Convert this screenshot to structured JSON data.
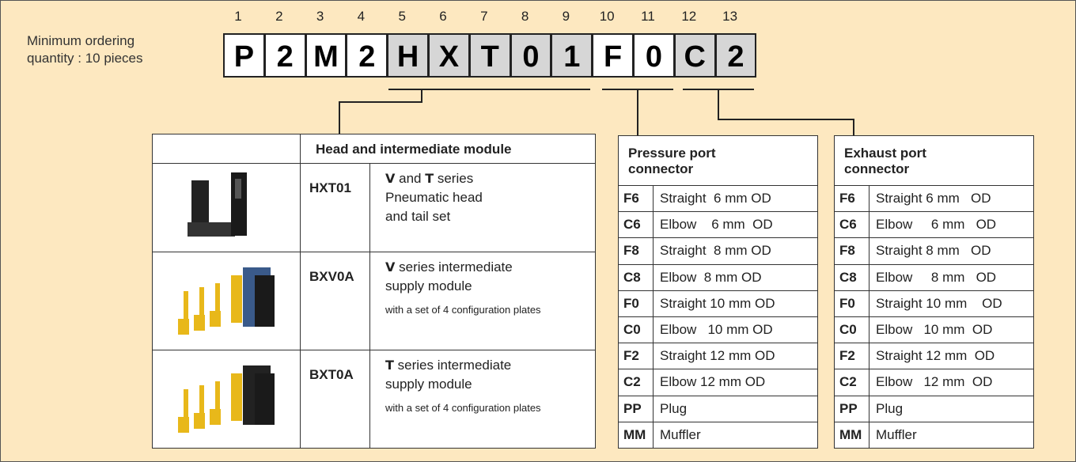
{
  "note": {
    "lines": [
      "Minimum ordering",
      "quantity : 10 pieces"
    ]
  },
  "code": {
    "positions": [
      "1",
      "2",
      "3",
      "4",
      "5",
      "6",
      "7",
      "8",
      "9",
      "10",
      "11",
      "12",
      "13"
    ],
    "chars": [
      "P",
      "2",
      "M",
      "2",
      "H",
      "X",
      "T",
      "0",
      "1",
      "F",
      "0",
      "C",
      "2"
    ]
  },
  "head_table": {
    "title": "Head and intermediate module",
    "rows": [
      {
        "code": "HXT01",
        "lines": [
          [
            {
              "text": "V",
              "bold": true
            },
            {
              "text": " and "
            },
            {
              "text": "T",
              "bold": true
            },
            {
              "text": " series"
            }
          ],
          [
            {
              "text": "Pneumatic head"
            }
          ],
          [
            {
              "text": "and tail set"
            }
          ]
        ]
      },
      {
        "code": "BXV0A",
        "lines": [
          [
            {
              "text": "V",
              "bold": true
            },
            {
              "text": " series intermediate"
            }
          ],
          [
            {
              "text": "supply module"
            }
          ]
        ],
        "note": "with a set of 4 configuration plates"
      },
      {
        "code": "BXT0A",
        "lines": [
          [
            {
              "text": "T",
              "bold": true
            },
            {
              "text": " series intermediate"
            }
          ],
          [
            {
              "text": "supply module"
            }
          ]
        ],
        "note": "with a set of 4 configuration plates"
      }
    ]
  },
  "pressure_table": {
    "title": [
      "Pressure port",
      "connector"
    ],
    "rows": [
      [
        "F6",
        "Straight  6 mm OD"
      ],
      [
        "C6",
        "Elbow    6 mm  OD"
      ],
      [
        "F8",
        "Straight  8 mm OD"
      ],
      [
        "C8",
        "Elbow  8 mm OD"
      ],
      [
        "F0",
        "Straight 10 mm OD"
      ],
      [
        "C0",
        "Elbow   10 mm OD"
      ],
      [
        "F2",
        "Straight 12 mm OD"
      ],
      [
        "C2",
        "Elbow 12 mm OD"
      ],
      [
        "PP",
        "Plug"
      ],
      [
        "MM",
        "Muffler"
      ]
    ]
  },
  "exhaust_table": {
    "title": [
      "Exhaust port",
      "connector"
    ],
    "rows": [
      [
        "F6",
        "Straight 6 mm   OD"
      ],
      [
        "C6",
        "Elbow     6 mm   OD"
      ],
      [
        "F8",
        "Straight 8 mm   OD"
      ],
      [
        "C8",
        "Elbow     8 mm   OD"
      ],
      [
        "F0",
        "Straight 10 mm    OD"
      ],
      [
        "C0",
        "Elbow   10 mm  OD"
      ],
      [
        "F2",
        "Straight 12 mm  OD"
      ],
      [
        "C2",
        "Elbow   12 mm  OD"
      ],
      [
        "PP",
        "Plug"
      ],
      [
        "MM",
        "Muffler"
      ]
    ]
  }
}
